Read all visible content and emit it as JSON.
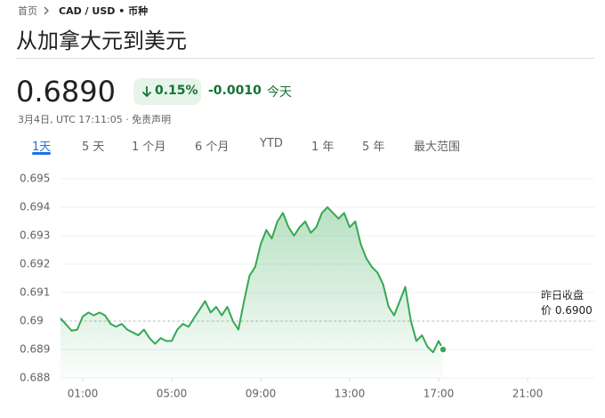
{
  "header": {
    "breadcrumb_home": "首页",
    "breadcrumb_pair": "CAD / USD • 币种",
    "title": "从加拿大元到美元"
  },
  "quote": {
    "price": "0.6890",
    "change_percent": "0.15%",
    "change": "-0.0010",
    "period": "今天",
    "timestamp": "3月4日, UTC 17:11:05 · 免责声明"
  },
  "tabs": [
    "1天",
    "5 天",
    "1 个月",
    "6 个月",
    "YTD",
    "1 年",
    "5 年",
    "最大范围"
  ],
  "selected_tab": 0,
  "chart_data": {
    "type": "line",
    "color": "#34a853",
    "x": [
      0,
      0.25,
      0.5,
      0.75,
      1,
      1.25,
      1.5,
      1.75,
      2,
      2.25,
      2.5,
      2.75,
      3,
      3.25,
      3.5,
      3.75,
      4,
      4.25,
      4.5,
      4.75,
      5,
      5.25,
      5.5,
      5.75,
      6,
      6.25,
      6.5,
      6.75,
      7,
      7.25,
      7.5,
      7.75,
      8,
      8.25,
      8.5,
      8.75,
      9,
      9.25,
      9.5,
      9.75,
      10,
      10.25,
      10.5,
      10.75,
      11,
      11.25,
      11.5,
      11.75,
      12,
      12.25,
      12.5,
      12.75,
      13,
      13.25,
      13.5,
      13.75,
      14,
      14.25,
      14.5,
      14.75,
      15,
      15.25,
      15.5,
      15.75,
      16,
      16.25,
      16.5,
      16.75,
      17,
      17.2
    ],
    "values": [
      0.6901,
      0.68988,
      0.68966,
      0.6897,
      0.69016,
      0.6903,
      0.6902,
      0.6903,
      0.6902,
      0.6899,
      0.6898,
      0.6899,
      0.6897,
      0.6896,
      0.6895,
      0.6897,
      0.6894,
      0.6892,
      0.6894,
      0.6893,
      0.6893,
      0.6897,
      0.6899,
      0.6898,
      0.6901,
      0.6904,
      0.6907,
      0.6903,
      0.6905,
      0.6902,
      0.6905,
      0.69,
      0.6897,
      0.6907,
      0.6916,
      0.6919,
      0.6927,
      0.6932,
      0.6929,
      0.6935,
      0.6938,
      0.6933,
      0.693,
      0.6933,
      0.6935,
      0.6931,
      0.6933,
      0.6938,
      0.694,
      0.6938,
      0.6936,
      0.6938,
      0.6933,
      0.6935,
      0.6927,
      0.6922,
      0.6919,
      0.6917,
      0.6913,
      0.6905,
      0.6902,
      0.6907,
      0.6912,
      0.69,
      0.6893,
      0.6895,
      0.6891,
      0.6889,
      0.6893,
      0.689
    ],
    "xlim": [
      0,
      24
    ],
    "xticks": [
      {
        "value": 1,
        "label": "01:00"
      },
      {
        "value": 5,
        "label": "05:00"
      },
      {
        "value": 9,
        "label": "09:00"
      },
      {
        "value": 13,
        "label": "13:00"
      },
      {
        "value": 17,
        "label": "17:00"
      },
      {
        "value": 21,
        "label": "21:00"
      }
    ],
    "ylim": [
      0.688,
      0.695
    ],
    "yticks": [
      0.688,
      0.689,
      0.69,
      0.691,
      0.692,
      0.693,
      0.694,
      0.695
    ],
    "grid": true,
    "reference_line": {
      "value": 0.69,
      "label": "昨日收盘价 0.6900"
    }
  }
}
